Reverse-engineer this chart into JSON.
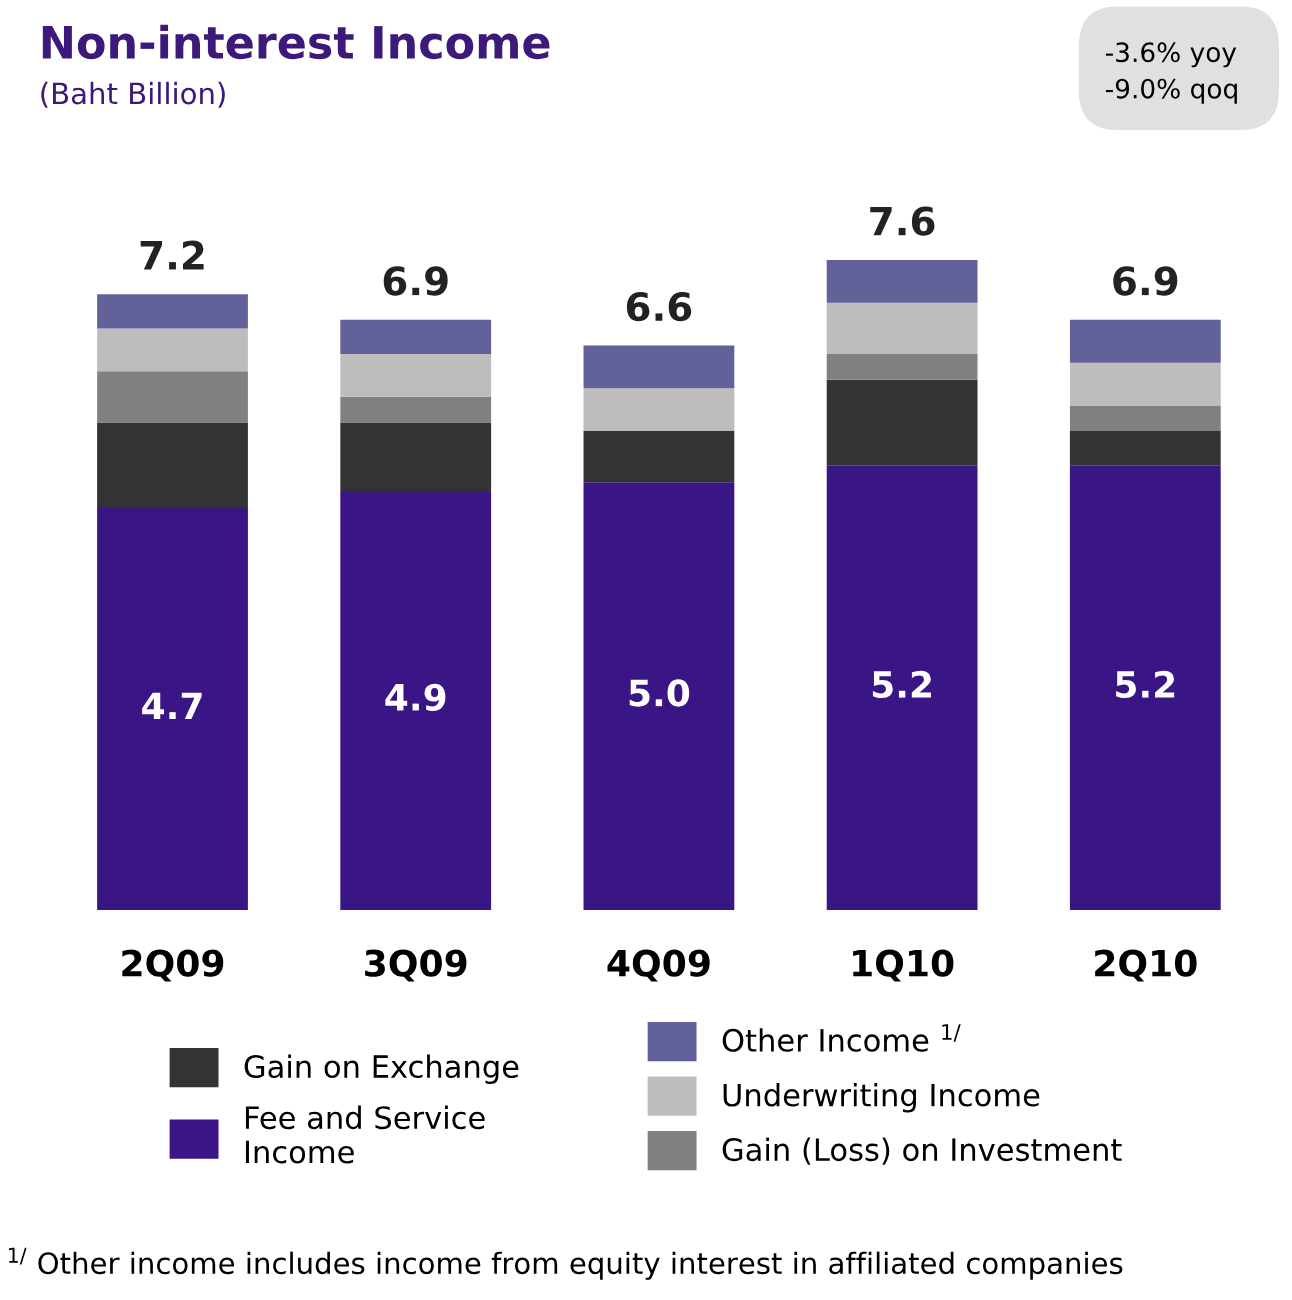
{
  "chart_data": {
    "type": "bar",
    "title": "Non-interest Income",
    "subtitle": "(Baht Billion)",
    "categories": [
      "2Q09",
      "3Q09",
      "4Q09",
      "1Q10",
      "2Q10"
    ],
    "stacked": true,
    "tick_labels": "x",
    "legend": "bottom",
    "grid": false,
    "series": [
      {
        "name": "Fee and Service Income",
        "color": "#3a1585",
        "values": [
          4.7,
          4.9,
          5.0,
          5.2,
          5.2
        ],
        "value_labels": [
          "4.7",
          "4.9",
          "5.0",
          "5.2",
          "5.2"
        ]
      },
      {
        "name": "Gain on Exchange",
        "color": "#333333",
        "values": [
          1.0,
          0.8,
          0.6,
          1.0,
          0.4
        ]
      },
      {
        "name": "Gain (Loss) on Investment",
        "color": "#808080",
        "values": [
          0.6,
          0.3,
          0,
          0.3,
          0.3
        ]
      },
      {
        "name": "Underwriting Income",
        "color": "#bdbdbd",
        "values": [
          0.5,
          0.5,
          0.5,
          0.6,
          0.5
        ]
      },
      {
        "name": "Other Income $^{1/}$",
        "color": "#62619a",
        "values": [
          0.4,
          0.4,
          0.5,
          0.5,
          0.5
        ]
      }
    ],
    "totals": [
      "7.2",
      "6.9",
      "6.6",
      "7.6",
      "6.9"
    ],
    "annotations": [
      "-3.6% yoy",
      "-9.0% qoq",
      "$^{1/}$ Other income includes income from equity interest in affiliated companies"
    ]
  }
}
